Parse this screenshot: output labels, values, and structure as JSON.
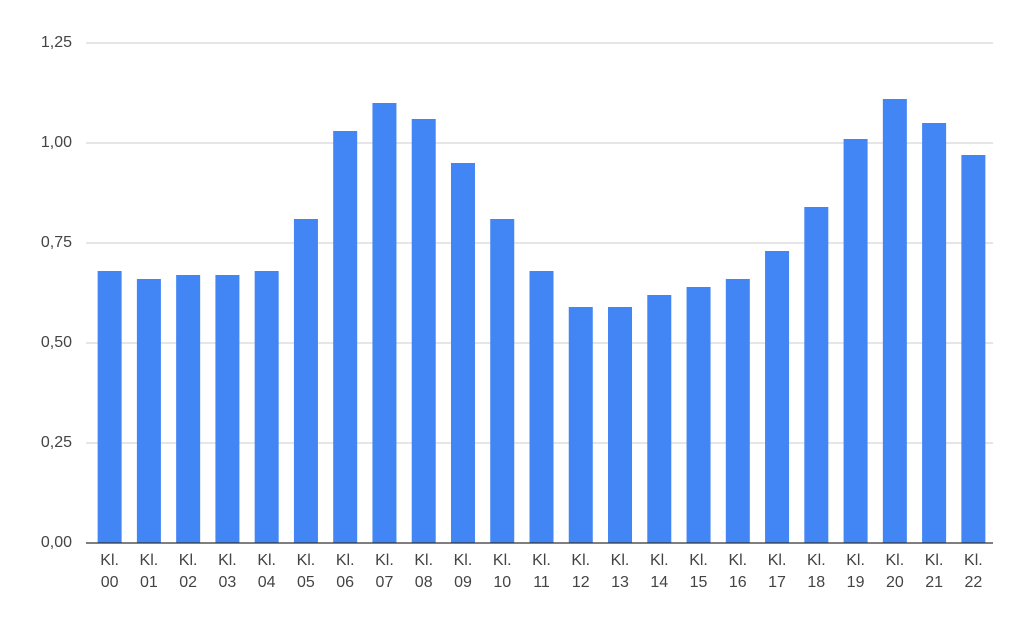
{
  "chart_data": {
    "type": "bar",
    "categories": [
      "Kl. 00",
      "Kl. 01",
      "Kl. 02",
      "Kl. 03",
      "Kl. 04",
      "Kl. 05",
      "Kl. 06",
      "Kl. 07",
      "Kl. 08",
      "Kl. 09",
      "Kl. 10",
      "Kl. 11",
      "Kl. 12",
      "Kl. 13",
      "Kl. 14",
      "Kl. 15",
      "Kl. 16",
      "Kl. 17",
      "Kl. 18",
      "Kl. 19",
      "Kl. 20",
      "Kl. 21",
      "Kl. 22"
    ],
    "values": [
      0.68,
      0.66,
      0.67,
      0.67,
      0.68,
      0.81,
      1.03,
      1.1,
      1.06,
      0.95,
      0.81,
      0.68,
      0.59,
      0.59,
      0.62,
      0.64,
      0.66,
      0.73,
      0.84,
      1.01,
      1.11,
      1.05,
      0.97
    ],
    "color": "#4285f4",
    "ylim": [
      0,
      1.25
    ],
    "yticks": [
      {
        "value": 0,
        "label": "0,00"
      },
      {
        "value": 0.25,
        "label": "0,25"
      },
      {
        "value": 0.5,
        "label": "0,50"
      },
      {
        "value": 0.75,
        "label": "0,75"
      },
      {
        "value": 1,
        "label": "1,00"
      },
      {
        "value": 1.25,
        "label": "1,25"
      }
    ],
    "grid": true
  }
}
